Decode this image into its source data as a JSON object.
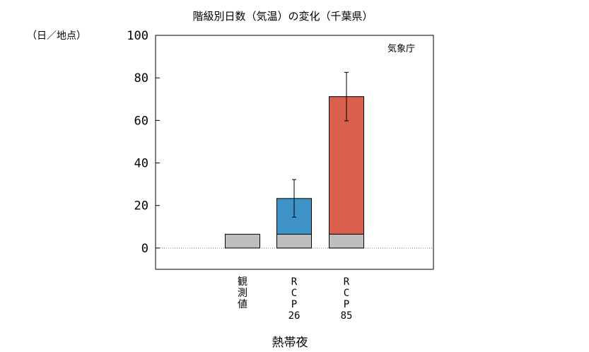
{
  "chart_data": {
    "type": "bar",
    "title": "階級別日数（気温）の変化（千葉県）",
    "ylabel": "（日／地点）",
    "xlabel": "熱帯夜",
    "source": "気象庁",
    "ylim": [
      -10,
      100
    ],
    "yticks": [
      0,
      20,
      40,
      60,
      80,
      100
    ],
    "categories": [
      {
        "lines": [
          "観",
          "測",
          "値"
        ]
      },
      {
        "lines": [
          "R",
          "C",
          "P",
          "26"
        ]
      },
      {
        "lines": [
          "R",
          "C",
          "P",
          "85"
        ]
      }
    ],
    "baseline_value": 6.5,
    "series": [
      {
        "values": [
          6.5,
          23.3,
          71.2
        ],
        "colors": [
          "#bebebe",
          "#3e93c6",
          "#d9604c"
        ]
      }
    ],
    "error_bars": [
      null,
      {
        "low": 14.5,
        "high": 32.2
      },
      {
        "low": 59.8,
        "high": 82.6
      }
    ],
    "zero_line": "dotted",
    "grid": false
  }
}
